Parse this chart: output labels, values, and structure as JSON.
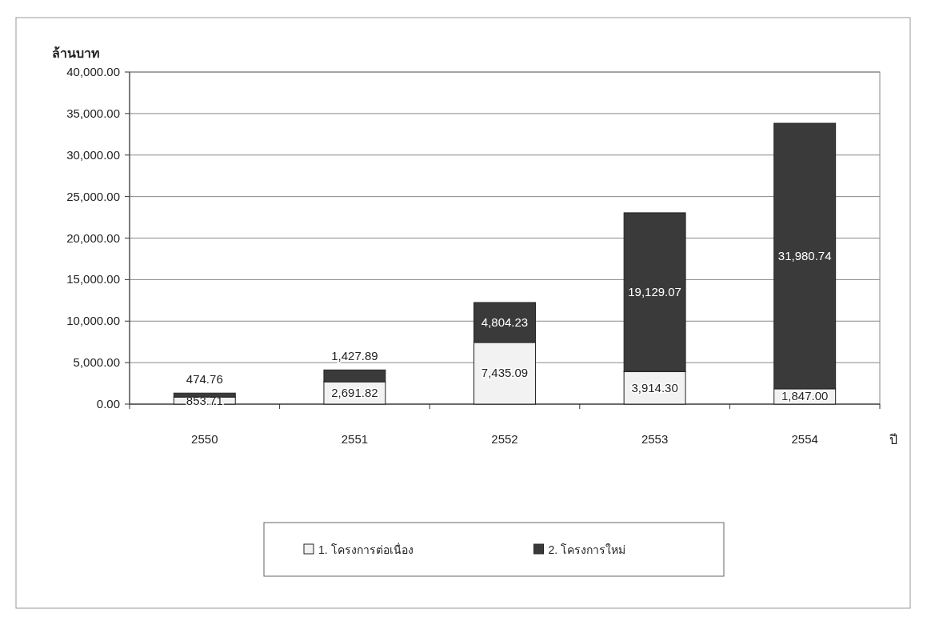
{
  "chart_data": {
    "type": "bar",
    "stacked": true,
    "ylabel": "ล้านบาท",
    "xlabel": "ปี",
    "categories": [
      "2550",
      "2551",
      "2552",
      "2553",
      "2554"
    ],
    "series": [
      {
        "name": "1. โครงการต่อเนื่อง",
        "color": "#f2f2f2",
        "values": [
          853.71,
          2691.82,
          7435.09,
          3914.3,
          1847.0
        ],
        "value_labels": [
          "853.71",
          "2,691.82",
          "7,435.09",
          "3,914.30",
          "1,847.00"
        ]
      },
      {
        "name": "2. โครงการใหม่",
        "color": "#3a3a3a",
        "values": [
          474.76,
          1427.89,
          4804.23,
          19129.07,
          31980.74
        ],
        "value_labels": [
          "474.76",
          "1,427.89",
          "4,804.23",
          "19,129.07",
          "31,980.74"
        ]
      }
    ],
    "ylim": [
      0,
      40000
    ],
    "yticks": [
      {
        "value": 0,
        "label": "0.00"
      },
      {
        "value": 5000,
        "label": "5,000.00"
      },
      {
        "value": 10000,
        "label": "10,000.00"
      },
      {
        "value": 15000,
        "label": "15,000.00"
      },
      {
        "value": 20000,
        "label": "20,000.00"
      },
      {
        "value": 25000,
        "label": "25,000.00"
      },
      {
        "value": 30000,
        "label": "30,000.00"
      },
      {
        "value": 35000,
        "label": "35,000.00"
      },
      {
        "value": 40000,
        "label": "40,000.00"
      }
    ],
    "grid": "y",
    "legend": "bottom"
  }
}
